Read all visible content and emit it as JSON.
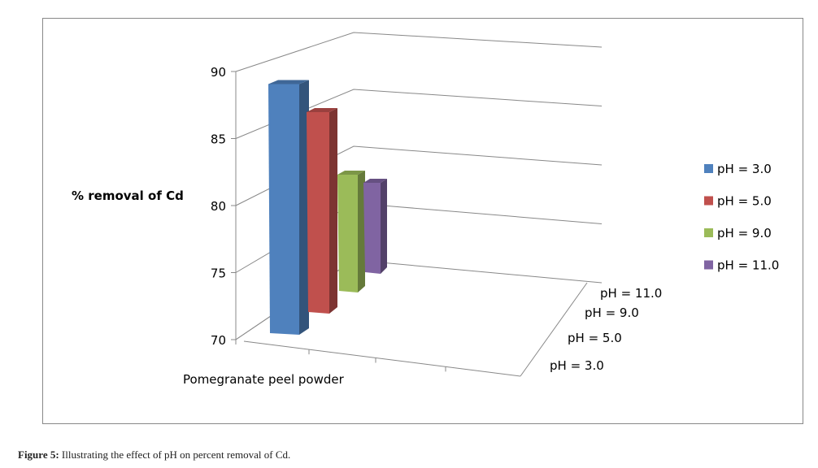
{
  "chart_data": {
    "type": "bar",
    "title": "",
    "ylabel": "% removal of Cd",
    "xlabel": "",
    "categories": [
      "Pomegranate peel powder"
    ],
    "depth_labels": [
      "pH = 3.0",
      "pH = 5.0",
      "pH = 9.0",
      "pH = 11.0"
    ],
    "ylim": [
      70,
      90
    ],
    "yticks": [
      "70",
      "75",
      "80",
      "85",
      "90"
    ],
    "series": [
      {
        "name": "pH = 3.0",
        "values": [
          88.7
        ],
        "color": "#4f81bd"
      },
      {
        "name": "pH = 5.0",
        "values": [
          86
        ],
        "color": "#c0504d"
      },
      {
        "name": "pH = 9.0",
        "values": [
          80
        ],
        "color": "#9bbb59"
      },
      {
        "name": "pH = 11.0",
        "values": [
          78
        ],
        "color": "#8064a2"
      }
    ],
    "legend_position": "right",
    "grid": true
  },
  "caption": {
    "label": "Figure 5:",
    "text": " Illustrating the effect of pH on percent removal of Cd."
  }
}
